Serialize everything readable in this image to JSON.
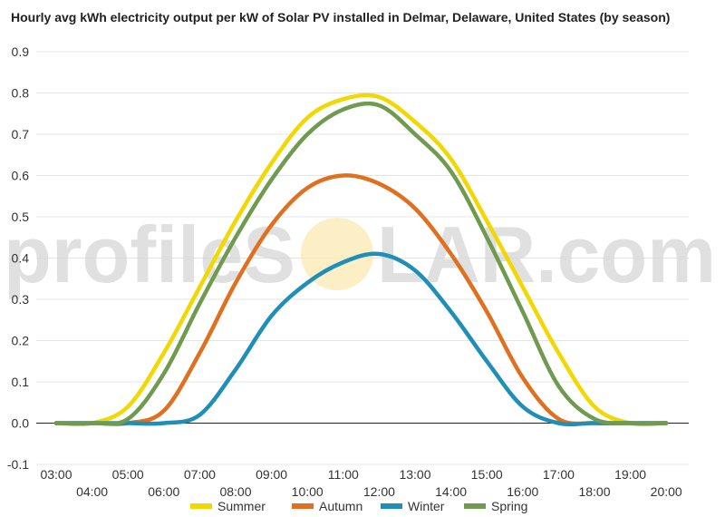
{
  "chart_data": {
    "type": "line",
    "title": "Hourly avg kWh electricity output per kW of Solar PV installed in Delmar, Delaware, United States (by season)",
    "xlabel": "",
    "ylabel": "",
    "ylim": [
      -0.1,
      0.9
    ],
    "yticks": [
      "0.9",
      "0.8",
      "0.7",
      "0.6",
      "0.5",
      "0.4",
      "0.3",
      "0.2",
      "0.1",
      "0.0",
      "-0.1"
    ],
    "x": [
      "03:00",
      "04:00",
      "05:00",
      "06:00",
      "07:00",
      "08:00",
      "09:00",
      "10:00",
      "11:00",
      "12:00",
      "13:00",
      "14:00",
      "15:00",
      "16:00",
      "17:00",
      "18:00",
      "19:00",
      "20:00"
    ],
    "grid": true,
    "legend_position": "bottom",
    "series": [
      {
        "name": "Summer",
        "color": "#f2d700",
        "values": [
          0.0,
          0.0,
          0.04,
          0.17,
          0.33,
          0.49,
          0.63,
          0.74,
          0.785,
          0.79,
          0.73,
          0.64,
          0.49,
          0.33,
          0.17,
          0.04,
          0.0,
          0.0
        ]
      },
      {
        "name": "Autumn",
        "color": "#e07020",
        "values": [
          0.0,
          0.0,
          0.0,
          0.03,
          0.17,
          0.34,
          0.48,
          0.57,
          0.6,
          0.58,
          0.52,
          0.41,
          0.27,
          0.11,
          0.01,
          0.0,
          0.0,
          0.0
        ]
      },
      {
        "name": "Winter",
        "color": "#1f8fb8",
        "values": [
          0.0,
          0.0,
          0.0,
          0.0,
          0.02,
          0.13,
          0.26,
          0.34,
          0.39,
          0.41,
          0.37,
          0.27,
          0.15,
          0.04,
          0.0,
          0.0,
          0.0,
          0.0
        ]
      },
      {
        "name": "Spring",
        "color": "#6f9a50",
        "values": [
          0.0,
          0.0,
          0.01,
          0.12,
          0.29,
          0.45,
          0.59,
          0.7,
          0.76,
          0.77,
          0.7,
          0.61,
          0.45,
          0.27,
          0.09,
          0.01,
          0.0,
          0.0
        ]
      }
    ]
  },
  "watermark": {
    "left": "profileS",
    "right": "LAR.com"
  }
}
